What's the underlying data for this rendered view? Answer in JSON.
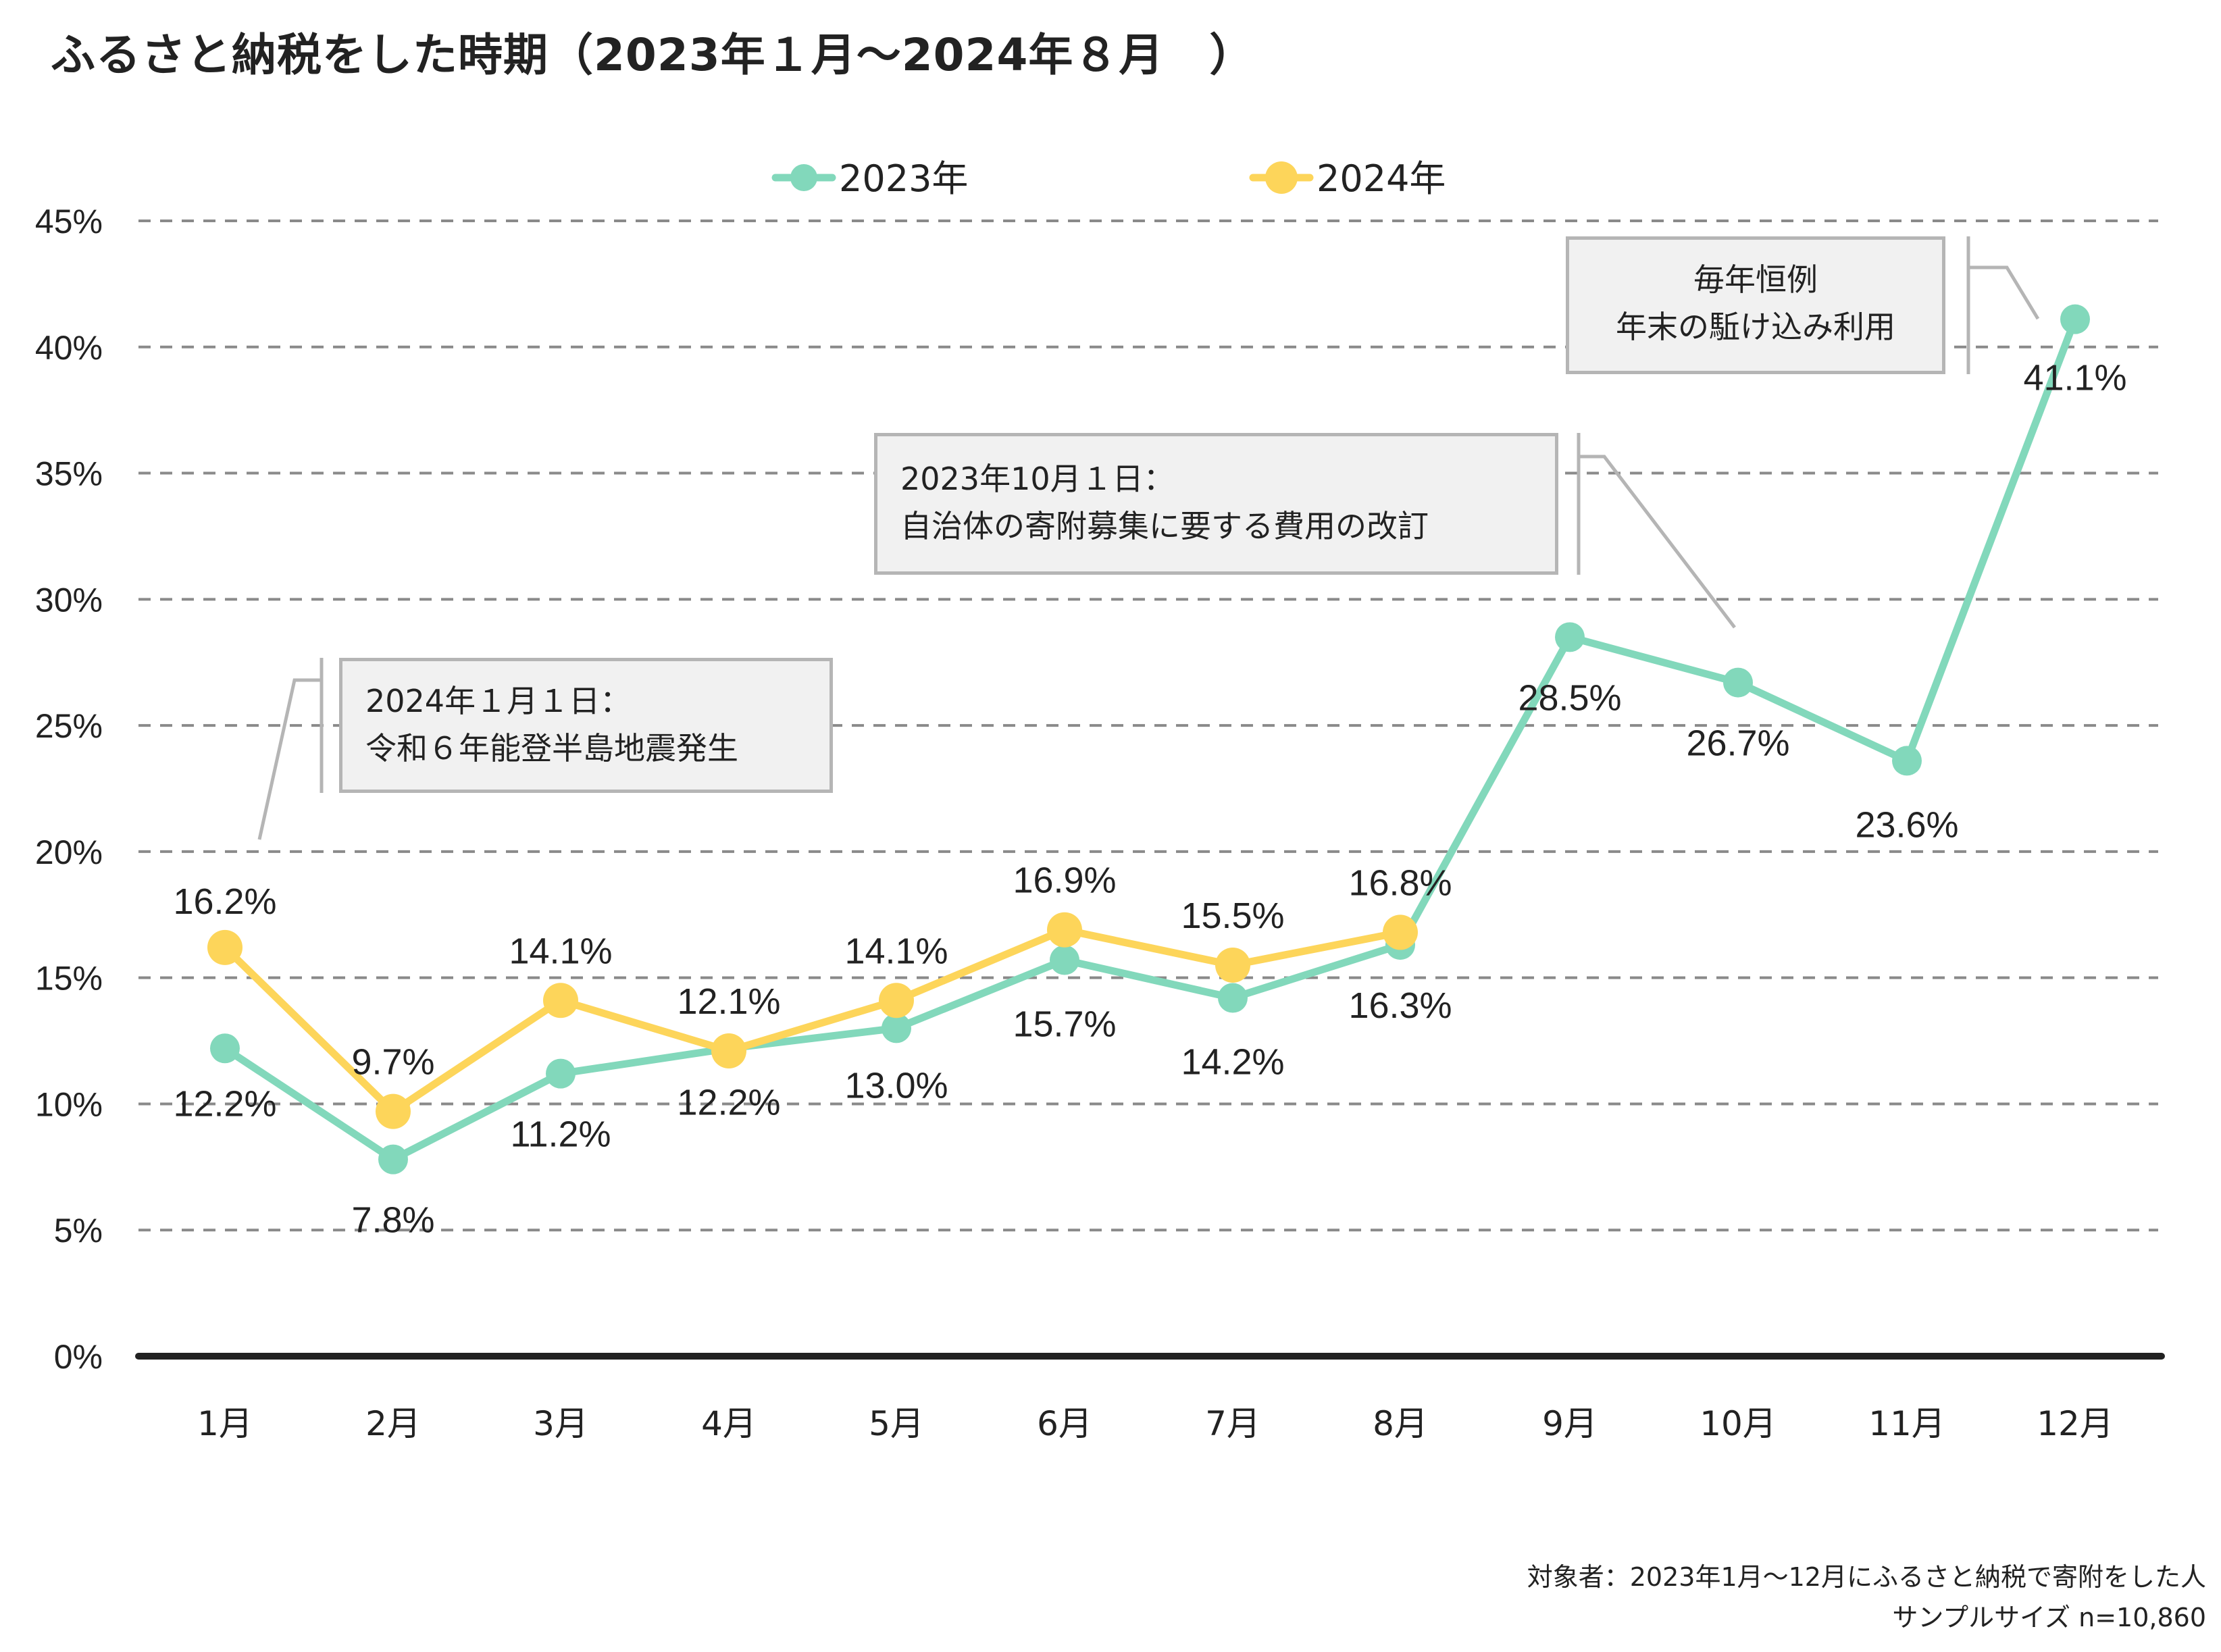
{
  "title": "ふるさと納税をした時期（2023年１月〜2024年８月　）",
  "colors": {
    "series_2023": "#82d8bb",
    "series_2024": "#fdd55a",
    "grid": "#8a8a8a",
    "axis": "#222222",
    "annotation_fill": "#f1f1f1",
    "annotation_border": "#b5b5b5"
  },
  "annotations": [
    {
      "lines": [
        "2024年１月１日：",
        "令和６年能登半島地震発生"
      ],
      "points_to": "1月 (2024)"
    },
    {
      "lines": [
        "2023年10月１日：",
        "自治体の寄附募集に要する費用の改訂"
      ],
      "points_to": "10月 (2023)"
    },
    {
      "lines": [
        "毎年恒例",
        "年末の駈け込み利用"
      ],
      "points_to": "12月 (2023)"
    }
  ],
  "footer": {
    "line1": "対象者：2023年1月〜12月にふるさと納税で寄附をした人",
    "line2": "サンプルサイズ n=10,860"
  },
  "chart_data": {
    "type": "line",
    "title": "ふるさと納税をした時期（2023年１月〜2024年８月　）",
    "xlabel": "",
    "ylabel": "",
    "categories": [
      "1月",
      "2月",
      "3月",
      "4月",
      "5月",
      "6月",
      "7月",
      "8月",
      "9月",
      "10月",
      "11月",
      "12月"
    ],
    "ylim": [
      0,
      45
    ],
    "yticks": [
      0,
      5,
      10,
      15,
      20,
      25,
      30,
      35,
      40,
      45
    ],
    "ytick_labels": [
      "0%",
      "5%",
      "10%",
      "15%",
      "20%",
      "25%",
      "30%",
      "35%",
      "40%",
      "45%"
    ],
    "grid": true,
    "legend_position": "top-center",
    "series": [
      {
        "name": "2023年",
        "color": "#82d8bb",
        "values": [
          12.2,
          7.8,
          11.2,
          12.2,
          13.0,
          15.7,
          14.2,
          16.3,
          28.5,
          26.7,
          23.6,
          41.1
        ],
        "labels": [
          "12.2%",
          "7.8%",
          "11.2%",
          "12.2%",
          "13.0%",
          "15.7%",
          "14.2%",
          "16.3%",
          "28.5%",
          "26.7%",
          "23.6%",
          "41.1%"
        ],
        "label_position": "below"
      },
      {
        "name": "2024年",
        "color": "#fdd55a",
        "values": [
          16.2,
          9.7,
          14.1,
          12.1,
          14.1,
          16.9,
          15.5,
          16.8
        ],
        "labels": [
          "16.2%",
          "9.7%",
          "14.1%",
          "12.1%",
          "14.1%",
          "16.9%",
          "15.5%",
          "16.8%"
        ],
        "label_position": "above"
      }
    ]
  }
}
